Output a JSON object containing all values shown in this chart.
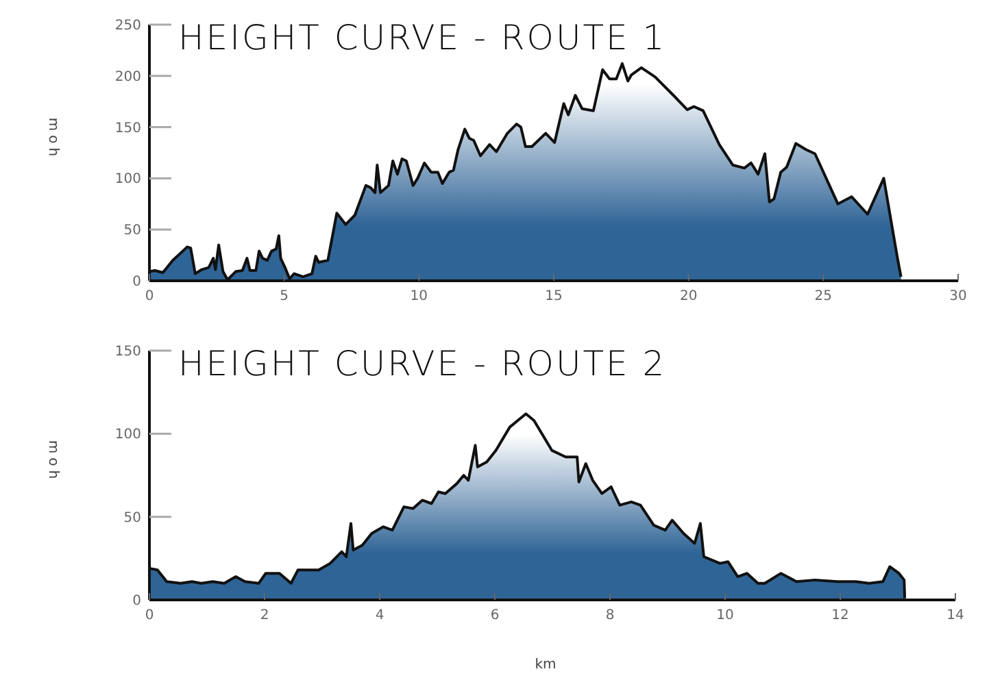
{
  "chart_data": [
    {
      "type": "area",
      "title": "HEIGHT CURVE - ROUTE 1",
      "ylabel": "moh",
      "xlim": [
        0,
        30
      ],
      "xticks": [
        0,
        5,
        10,
        15,
        20,
        25,
        30
      ],
      "ylim": [
        0,
        250
      ],
      "yticks": [
        0,
        50,
        100,
        150,
        200,
        250
      ],
      "grid": false,
      "series": [
        {
          "color": "#2f6496",
          "x": [
            0,
            0.2,
            0.5,
            0.87,
            1.4,
            1.53,
            1.7,
            1.95,
            2.2,
            2.37,
            2.45,
            2.57,
            2.73,
            2.9,
            3.2,
            3.45,
            3.62,
            3.73,
            3.95,
            4.07,
            4.2,
            4.37,
            4.53,
            4.7,
            4.8,
            4.87,
            5.03,
            5.2,
            5.37,
            5.7,
            6.03,
            6.17,
            6.28,
            6.62,
            6.95,
            7.28,
            7.62,
            8.03,
            8.2,
            8.37,
            8.45,
            8.57,
            8.87,
            9.03,
            9.2,
            9.37,
            9.53,
            9.78,
            9.95,
            10.2,
            10.45,
            10.7,
            10.87,
            11.12,
            11.28,
            11.45,
            11.7,
            11.87,
            12.03,
            12.28,
            12.62,
            12.87,
            13.28,
            13.62,
            13.78,
            13.95,
            14.19,
            14.7,
            15.03,
            15.37,
            15.54,
            15.8,
            16.05,
            16.47,
            16.81,
            17.07,
            17.32,
            17.54,
            17.75,
            17.88,
            18.25,
            18.76,
            19.44,
            19.95,
            20.2,
            20.54,
            21.14,
            21.64,
            22.07,
            22.32,
            22.58,
            22.83,
            23.0,
            23.17,
            23.42,
            23.64,
            23.98,
            24.36,
            24.69,
            25.54,
            26.05,
            26.64,
            27.24,
            27.75,
            27.88
          ],
          "values": [
            9,
            10,
            8,
            20,
            33,
            32,
            7,
            11,
            13,
            22,
            11,
            35,
            9,
            1,
            9,
            10,
            22,
            10,
            10,
            29,
            22,
            20,
            29,
            31,
            44,
            22,
            13,
            2,
            7,
            4,
            7,
            24,
            18,
            20,
            66,
            55,
            64,
            93,
            91,
            86,
            113,
            86,
            93,
            117,
            104,
            119,
            117,
            93,
            100,
            115,
            106,
            106,
            95,
            106,
            108,
            128,
            148,
            139,
            137,
            122,
            133,
            126,
            144,
            153,
            150,
            131,
            131,
            144,
            135,
            173,
            162,
            181,
            168,
            166,
            206,
            197,
            197,
            212,
            195,
            201,
            208,
            199,
            181,
            167,
            170,
            166,
            133,
            113,
            110,
            115,
            104,
            124,
            77,
            80,
            106,
            111,
            134,
            128,
            124,
            75,
            82,
            65,
            100,
            22,
            4
          ]
        }
      ]
    },
    {
      "type": "area",
      "title": "HEIGHT CURVE - ROUTE 2",
      "xlabel": "km",
      "ylabel": "moh",
      "xlim": [
        0,
        14
      ],
      "xticks": [
        0,
        2,
        4,
        6,
        8,
        10,
        12,
        14
      ],
      "ylim": [
        0,
        150
      ],
      "yticks": [
        0,
        50,
        100,
        150
      ],
      "grid": false,
      "series": [
        {
          "color": "#2f6496",
          "x": [
            0,
            0.14,
            0.3,
            0.54,
            0.74,
            0.9,
            1.1,
            1.3,
            1.5,
            1.66,
            1.9,
            2.02,
            2.26,
            2.46,
            2.58,
            2.94,
            3.14,
            3.34,
            3.42,
            3.5,
            3.54,
            3.7,
            3.86,
            4.06,
            4.22,
            4.42,
            4.58,
            4.74,
            4.9,
            5.02,
            5.14,
            5.34,
            5.46,
            5.54,
            5.66,
            5.7,
            5.86,
            6.02,
            6.26,
            6.54,
            6.68,
            6.99,
            7.23,
            7.43,
            7.46,
            7.58,
            7.7,
            7.86,
            8.02,
            8.17,
            8.37,
            8.53,
            8.76,
            8.96,
            9.08,
            9.28,
            9.47,
            9.57,
            9.63,
            9.91,
            10.05,
            10.22,
            10.38,
            10.57,
            10.69,
            10.97,
            11.24,
            11.56,
            11.95,
            12.27,
            12.5,
            12.74,
            12.86,
            13.02,
            13.11,
            13.12
          ],
          "values": [
            19,
            18,
            11,
            10,
            11,
            10,
            11,
            10,
            14,
            11,
            10,
            16,
            16,
            10,
            18,
            18,
            22,
            29,
            26,
            46,
            30,
            33,
            40,
            44,
            42,
            56,
            55,
            60,
            58,
            65,
            64,
            70,
            75,
            72,
            93,
            80,
            83,
            90,
            104,
            112,
            108,
            90,
            86,
            86,
            71,
            82,
            72,
            64,
            68,
            57,
            59,
            57,
            45,
            42,
            48,
            40,
            34,
            46,
            26,
            22,
            23,
            14,
            16,
            10,
            10,
            16,
            11,
            12,
            11,
            11,
            10,
            11,
            20,
            16,
            12,
            1
          ]
        }
      ]
    }
  ]
}
